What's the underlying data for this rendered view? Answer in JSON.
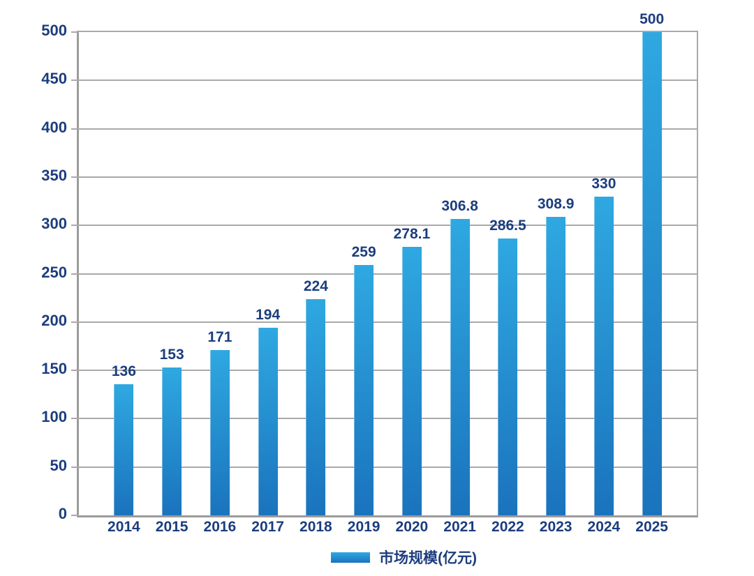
{
  "chart_data": {
    "type": "bar",
    "categories": [
      "2014",
      "2015",
      "2016",
      "2017",
      "2018",
      "2019",
      "2020",
      "2021",
      "2022",
      "2023",
      "2024",
      "2025"
    ],
    "values": [
      136,
      153,
      171,
      194,
      224,
      259,
      278.1,
      306.8,
      286.5,
      308.9,
      330,
      500
    ],
    "data_labels": [
      "136",
      "153",
      "171",
      "194",
      "224",
      "259",
      "278.1",
      "306.8",
      "286.5",
      "308.9",
      "330",
      "500"
    ],
    "title": "",
    "xlabel": "",
    "ylabel": "",
    "ylim": [
      0,
      500
    ],
    "ytick_step": 50,
    "ytick_labels": [
      "0",
      "50",
      "100",
      "150",
      "200",
      "250",
      "300",
      "350",
      "400",
      "450",
      "500"
    ],
    "grid": true,
    "legend_position": "bottom",
    "legend": "市场规模(亿元)"
  },
  "colors": {
    "bar_gradient_top": "#2fa8e1",
    "bar_gradient_bottom": "#1a73bd",
    "text_navy": "#1c3d7e",
    "gridline": "#a9a9a9",
    "axis": "#9b9b9b",
    "background": "#ffffff"
  }
}
